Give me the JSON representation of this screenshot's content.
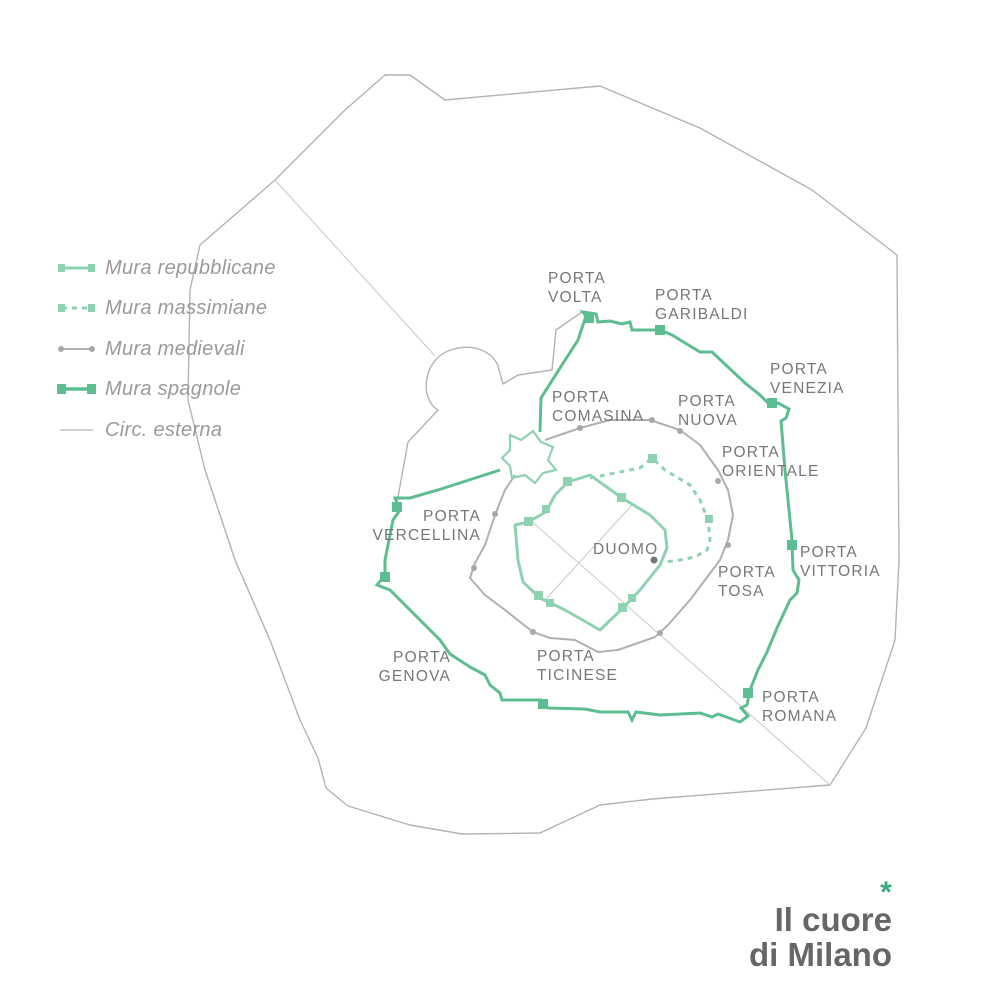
{
  "legend": [
    {
      "label": "Mura repubblicane",
      "color": "#8ed2b1",
      "style": "solid-with-squares"
    },
    {
      "label": "Mura massimiane",
      "color": "#8ed2b1",
      "style": "dashed"
    },
    {
      "label": "Mura medievali",
      "color": "#b0b0b0",
      "style": "solid-with-dots"
    },
    {
      "label": "Mura spagnole",
      "color": "#5cbd90",
      "style": "thick-with-squares"
    },
    {
      "label": "Circ. esterna",
      "color": "#b3b3b3",
      "style": "thin"
    }
  ],
  "gates": [
    {
      "lines": [
        "PORTA",
        "VOLTA"
      ]
    },
    {
      "lines": [
        "PORTA",
        "GARIBALDI"
      ]
    },
    {
      "lines": [
        "PORTA",
        "VENEZIA"
      ]
    },
    {
      "lines": [
        "PORTA",
        "COMASINA"
      ]
    },
    {
      "lines": [
        "PORTA",
        "NUOVA"
      ]
    },
    {
      "lines": [
        "PORTA",
        "ORIENTALE"
      ]
    },
    {
      "lines": [
        "PORTA",
        "VERCELLINA"
      ]
    },
    {
      "lines": [
        "PORTA",
        "TOSA"
      ]
    },
    {
      "lines": [
        "PORTA",
        "VITTORIA"
      ]
    },
    {
      "lines": [
        "PORTA",
        "GENOVA"
      ]
    },
    {
      "lines": [
        "PORTA",
        "TICINESE"
      ]
    },
    {
      "lines": [
        "PORTA",
        "ROMANA"
      ]
    }
  ],
  "duomo": "DUOMO",
  "title": {
    "mark": "*",
    "line1": "Il cuore",
    "line2": "di Milano"
  },
  "colors": {
    "spanish_walls": "#5cbd90",
    "republican_walls": "#8ed2b1",
    "medieval_walls": "#b0b0b0",
    "outer_ring": "#b3b3b3",
    "labels": "#777777",
    "title": "#666666",
    "accent": "#3aa878"
  }
}
